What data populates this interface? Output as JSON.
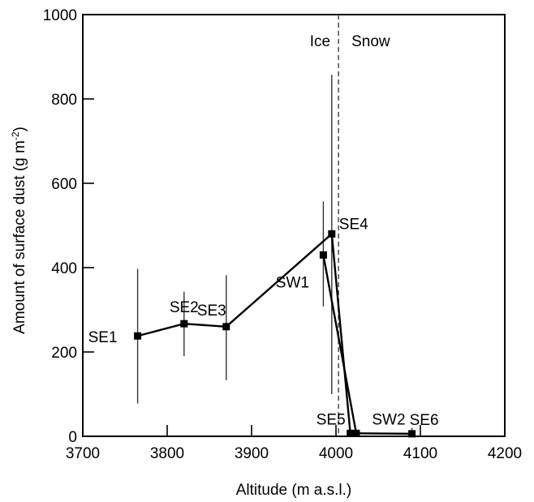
{
  "chart_data": {
    "type": "line",
    "title": "",
    "xlabel": "Altitude (m a.s.l.)",
    "ylabel_main": "Amount of surface dust  (g m",
    "ylabel_sup": "-2",
    "ylabel_close": ")",
    "xlim": [
      3700,
      4200
    ],
    "ylim": [
      0,
      1000
    ],
    "xticks": [
      3700,
      3800,
      3900,
      4000,
      4100,
      4200
    ],
    "yticks": [
      0,
      200,
      400,
      600,
      800,
      1000
    ],
    "grid": false,
    "divider": {
      "x": 4003,
      "left_label": "Ice",
      "right_label": "Snow"
    },
    "series": [
      {
        "points": [
          {
            "label": "SE1",
            "x": 3765,
            "y": 238,
            "err_low": 78,
            "err_high": 397
          },
          {
            "label": "SE2",
            "x": 3820,
            "y": 267,
            "err_low": 190,
            "err_high": 343
          },
          {
            "label": "SE3",
            "x": 3870,
            "y": 260,
            "err_low": 133,
            "err_high": 382
          },
          {
            "label": "SE4",
            "x": 3995,
            "y": 480,
            "err_low": 100,
            "err_high": 857
          },
          {
            "label": "SE5",
            "x": 4017,
            "y": 7,
            "err_low": null,
            "err_high": null
          },
          {
            "label": "SW2",
            "x": 4024,
            "y": 7,
            "err_low": null,
            "err_high": null
          },
          {
            "label": "SE6",
            "x": 4090,
            "y": 6,
            "err_low": null,
            "err_high": 20
          }
        ]
      },
      {
        "points": [
          {
            "label": "SW1",
            "x": 3985,
            "y": 430,
            "err_low": 308,
            "err_high": 557
          },
          {
            "label": "SW2",
            "x": 4024,
            "y": 7,
            "err_low": null,
            "err_high": null
          }
        ]
      }
    ]
  }
}
